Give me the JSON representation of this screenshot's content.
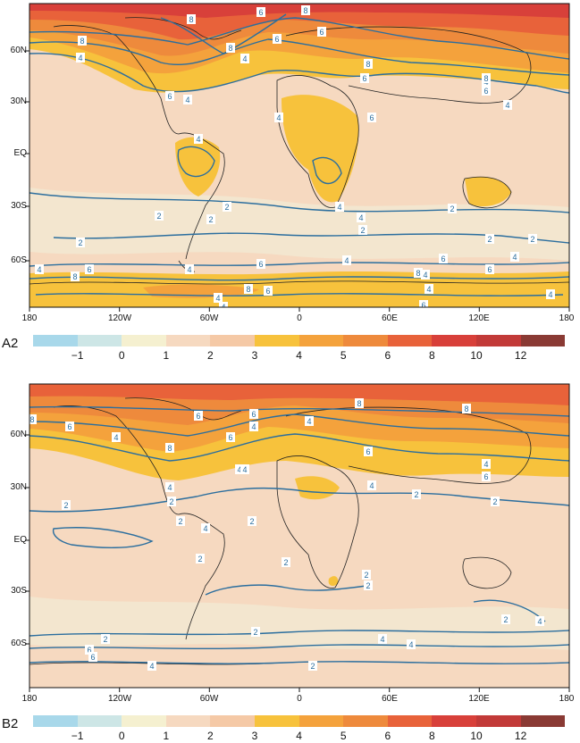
{
  "panels": [
    {
      "id": "A",
      "tag": "A2",
      "lat_labels": [
        "60N",
        "30N",
        "EQ",
        "30S",
        "60S"
      ],
      "lon_labels": [
        "180",
        "120W",
        "60W",
        "0",
        "60E",
        "120E",
        "180"
      ],
      "contour_labels": [
        "8",
        "6",
        "8",
        "8",
        "6",
        "8",
        "6",
        "4",
        "4",
        "4",
        "6",
        "4",
        "6",
        "4",
        "6",
        "8",
        "8",
        "6",
        "4",
        "4",
        "4",
        "4",
        "2",
        "2",
        "2",
        "2",
        "2",
        "2",
        "2",
        "2",
        "4",
        "6",
        "8",
        "4",
        "6",
        "4",
        "4",
        "6",
        "8",
        "8",
        "6",
        "4",
        "4",
        "4",
        "6",
        "6",
        "4",
        "4"
      ]
    },
    {
      "id": "B",
      "tag": "B2",
      "lat_labels": [
        "60N",
        "30N",
        "EQ",
        "30S",
        "60S"
      ],
      "lon_labels": [
        "180",
        "120W",
        "60W",
        "0",
        "60E",
        "120E",
        "180"
      ],
      "contour_labels": [
        "8",
        "6",
        "4",
        "6",
        "8",
        "6",
        "4",
        "4",
        "6",
        "4",
        "8",
        "8",
        "6",
        "4",
        "6",
        "4",
        "4",
        "4",
        "2",
        "2",
        "2",
        "2",
        "4",
        "2",
        "2",
        "2",
        "2",
        "2",
        "2",
        "2",
        "2",
        "2",
        "4",
        "4",
        "6",
        "4",
        "6",
        "4",
        "2"
      ]
    }
  ],
  "legend": {
    "colors": [
      "#a8d8ea",
      "#cde6e6",
      "#f5f0d0",
      "#f6d9c0",
      "#f5c9a6",
      "#f7c23c",
      "#f4a23c",
      "#ee8a3c",
      "#e8623a",
      "#d8403a",
      "#c23a38",
      "#8a3a34"
    ],
    "labels": [
      "−1",
      "0",
      "1",
      "2",
      "3",
      "4",
      "5",
      "6",
      "8",
      "10",
      "12"
    ]
  }
}
